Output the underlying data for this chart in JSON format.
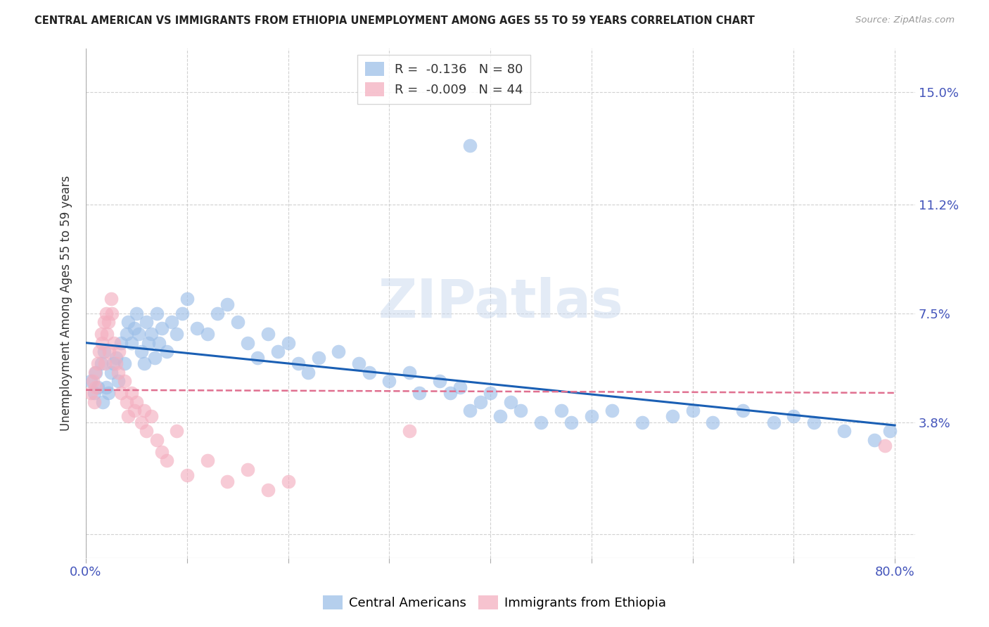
{
  "title": "CENTRAL AMERICAN VS IMMIGRANTS FROM ETHIOPIA UNEMPLOYMENT AMONG AGES 55 TO 59 YEARS CORRELATION CHART",
  "source": "Source: ZipAtlas.com",
  "ylabel": "Unemployment Among Ages 55 to 59 years",
  "xlim": [
    0.0,
    0.82
  ],
  "ylim": [
    -0.008,
    0.165
  ],
  "xtick_positions": [
    0.0,
    0.1,
    0.2,
    0.3,
    0.4,
    0.5,
    0.6,
    0.7,
    0.8
  ],
  "xticklabels": [
    "0.0%",
    "",
    "",
    "",
    "",
    "",
    "",
    "",
    "80.0%"
  ],
  "ytick_positions": [
    0.0,
    0.038,
    0.075,
    0.112,
    0.15
  ],
  "yticklabels_right": [
    "",
    "3.8%",
    "7.5%",
    "11.2%",
    "15.0%"
  ],
  "blue_color": "#9dbfe8",
  "pink_color": "#f4afc0",
  "blue_line_color": "#1a5fb4",
  "pink_line_color": "#e07090",
  "legend_blue_r": "-0.136",
  "legend_blue_n": "80",
  "legend_pink_r": "-0.009",
  "legend_pink_n": "44",
  "watermark_text": "ZIPatlas",
  "background_color": "#ffffff",
  "grid_color": "#cccccc",
  "blue_x": [
    0.005,
    0.008,
    0.01,
    0.012,
    0.015,
    0.017,
    0.018,
    0.02,
    0.022,
    0.025,
    0.027,
    0.03,
    0.032,
    0.035,
    0.038,
    0.04,
    0.042,
    0.045,
    0.048,
    0.05,
    0.052,
    0.055,
    0.058,
    0.06,
    0.062,
    0.065,
    0.068,
    0.07,
    0.072,
    0.075,
    0.08,
    0.085,
    0.09,
    0.095,
    0.1,
    0.11,
    0.12,
    0.13,
    0.14,
    0.15,
    0.16,
    0.17,
    0.18,
    0.19,
    0.2,
    0.21,
    0.22,
    0.23,
    0.25,
    0.27,
    0.28,
    0.3,
    0.32,
    0.33,
    0.35,
    0.36,
    0.37,
    0.38,
    0.39,
    0.4,
    0.41,
    0.42,
    0.43,
    0.45,
    0.47,
    0.48,
    0.5,
    0.52,
    0.55,
    0.58,
    0.6,
    0.62,
    0.65,
    0.68,
    0.7,
    0.72,
    0.75,
    0.78,
    0.795,
    0.38
  ],
  "blue_y": [
    0.052,
    0.048,
    0.055,
    0.05,
    0.058,
    0.045,
    0.062,
    0.05,
    0.048,
    0.055,
    0.058,
    0.06,
    0.052,
    0.065,
    0.058,
    0.068,
    0.072,
    0.065,
    0.07,
    0.075,
    0.068,
    0.062,
    0.058,
    0.072,
    0.065,
    0.068,
    0.06,
    0.075,
    0.065,
    0.07,
    0.062,
    0.072,
    0.068,
    0.075,
    0.08,
    0.07,
    0.068,
    0.075,
    0.078,
    0.072,
    0.065,
    0.06,
    0.068,
    0.062,
    0.065,
    0.058,
    0.055,
    0.06,
    0.062,
    0.058,
    0.055,
    0.052,
    0.055,
    0.048,
    0.052,
    0.048,
    0.05,
    0.042,
    0.045,
    0.048,
    0.04,
    0.045,
    0.042,
    0.038,
    0.042,
    0.038,
    0.04,
    0.042,
    0.038,
    0.04,
    0.042,
    0.038,
    0.042,
    0.038,
    0.04,
    0.038,
    0.035,
    0.032,
    0.035,
    0.132
  ],
  "pink_x": [
    0.005,
    0.007,
    0.008,
    0.009,
    0.01,
    0.012,
    0.013,
    0.015,
    0.016,
    0.018,
    0.019,
    0.02,
    0.021,
    0.022,
    0.023,
    0.025,
    0.026,
    0.028,
    0.03,
    0.032,
    0.033,
    0.035,
    0.038,
    0.04,
    0.042,
    0.045,
    0.048,
    0.05,
    0.055,
    0.058,
    0.06,
    0.065,
    0.07,
    0.075,
    0.08,
    0.09,
    0.1,
    0.12,
    0.14,
    0.16,
    0.18,
    0.2,
    0.32,
    0.79
  ],
  "pink_y": [
    0.048,
    0.052,
    0.045,
    0.055,
    0.05,
    0.058,
    0.062,
    0.068,
    0.065,
    0.072,
    0.058,
    0.075,
    0.068,
    0.072,
    0.062,
    0.08,
    0.075,
    0.065,
    0.058,
    0.055,
    0.062,
    0.048,
    0.052,
    0.045,
    0.04,
    0.048,
    0.042,
    0.045,
    0.038,
    0.042,
    0.035,
    0.04,
    0.032,
    0.028,
    0.025,
    0.035,
    0.02,
    0.025,
    0.018,
    0.022,
    0.015,
    0.018,
    0.035,
    0.03
  ],
  "blue_line_x": [
    0.0,
    0.8
  ],
  "blue_line_y": [
    0.065,
    0.037
  ],
  "pink_line_x": [
    0.0,
    0.8
  ],
  "pink_line_y": [
    0.049,
    0.048
  ]
}
